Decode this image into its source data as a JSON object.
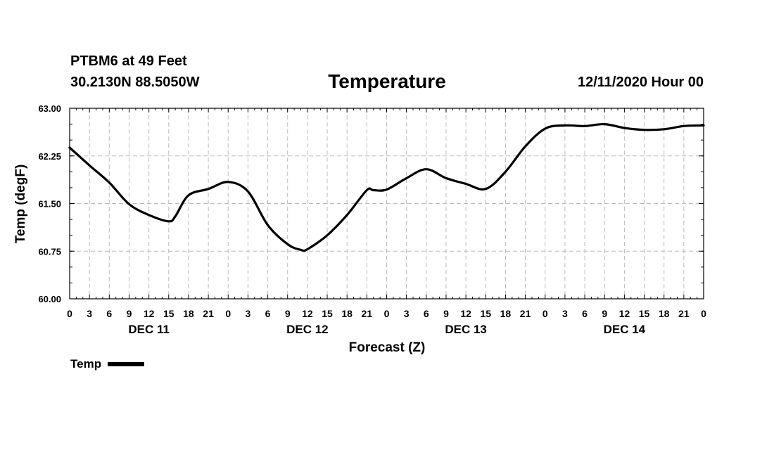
{
  "header": {
    "station": "PTBM6 at 49 Feet",
    "coords": "30.2130N 88.5050W",
    "datetime": "12/11/2020 Hour 00"
  },
  "legend": {
    "label": "Temp"
  },
  "colors": {
    "line": "#000000",
    "grid": "#bbbbbb",
    "axis": "#000000"
  },
  "chart_data": {
    "type": "line",
    "title": "Temperature",
    "xlabel": "Forecast (Z)",
    "ylabel": "Temp (degF)",
    "ylim": [
      60.0,
      63.0
    ],
    "xlim": [
      0,
      96
    ],
    "yticks": [
      60.0,
      60.75,
      61.5,
      62.25,
      63.0
    ],
    "ytick_labels": [
      "60.00",
      "60.75",
      "61.50",
      "62.25",
      "63.00"
    ],
    "xticks": [
      0,
      3,
      6,
      9,
      12,
      15,
      18,
      21,
      24,
      27,
      30,
      33,
      36,
      39,
      42,
      45,
      48,
      51,
      54,
      57,
      60,
      63,
      66,
      69,
      72,
      75,
      78,
      81,
      84,
      87,
      90,
      93,
      96
    ],
    "xtick_labels": [
      "0",
      "3",
      "6",
      "9",
      "12",
      "15",
      "18",
      "21",
      "0",
      "3",
      "6",
      "9",
      "12",
      "15",
      "18",
      "21",
      "0",
      "3",
      "6",
      "9",
      "12",
      "15",
      "18",
      "21",
      "0",
      "3",
      "6",
      "9",
      "12",
      "15",
      "18",
      "21",
      "0"
    ],
    "day_labels": [
      {
        "label": "DEC 11",
        "x": 12
      },
      {
        "label": "DEC 12",
        "x": 36
      },
      {
        "label": "DEC 13",
        "x": 60
      },
      {
        "label": "DEC 14",
        "x": 84
      }
    ],
    "grid": true,
    "legend_position": "bottom-left",
    "series": [
      {
        "name": "Temp",
        "x": [
          0,
          3,
          6,
          9,
          12,
          15,
          16,
          18,
          21,
          24,
          27,
          30,
          33,
          35,
          36,
          39,
          42,
          45,
          46,
          48,
          51,
          54,
          57,
          60,
          63,
          66,
          69,
          72,
          75,
          78,
          81,
          84,
          87,
          90,
          93,
          96
        ],
        "y": [
          62.38,
          62.1,
          61.83,
          61.49,
          61.32,
          61.22,
          61.3,
          61.63,
          61.73,
          61.84,
          61.69,
          61.16,
          60.86,
          60.77,
          60.78,
          61.0,
          61.32,
          61.71,
          61.71,
          61.72,
          61.9,
          62.04,
          61.9,
          61.81,
          61.73,
          62.0,
          62.4,
          62.68,
          62.73,
          62.72,
          62.75,
          62.69,
          62.66,
          62.67,
          62.72,
          62.73
        ]
      }
    ]
  }
}
